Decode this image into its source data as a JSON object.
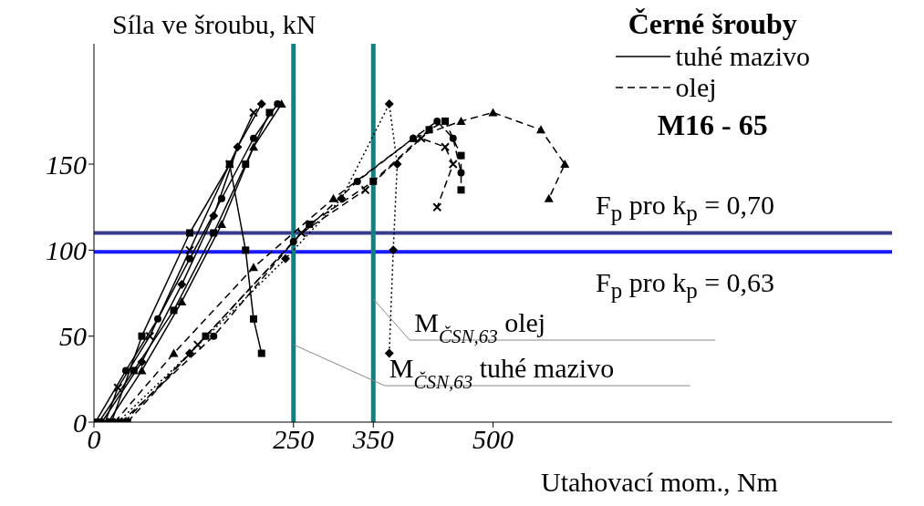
{
  "chart_data": {
    "type": "line",
    "title": "Černé šrouby",
    "subtitle": "M16 - 65",
    "ylabel": "Síla ve šroubu, kN",
    "xlabel": "Utahovací mom., Nm",
    "xlim": [
      0,
      1000
    ],
    "xticks": [
      0,
      250,
      350,
      500
    ],
    "ylim": [
      0,
      220
    ],
    "yticks": [
      0,
      50,
      100,
      150
    ],
    "grid": false,
    "legend": "top right",
    "annotations": [
      "F$_{p}$ pro k$_{p}$ = 0,70",
      "F$_{p}$ pro k$_{p}$ = 0,63"
    ],
    "series": [
      {
        "name": "tuhé mazivo",
        "color": "#000000",
        "line_style": "solid",
        "marker": "circle",
        "x": [
          2,
          40,
          80,
          120,
          160,
          200,
          230
        ],
        "values": [
          0,
          30,
          60,
          95,
          130,
          165,
          185
        ]
      },
      {
        "color": "#000000",
        "line_style": "solid",
        "marker": "square",
        "x": [
          6,
          50,
          100,
          150,
          190,
          220
        ],
        "values": [
          0,
          30,
          65,
          110,
          150,
          180
        ]
      },
      {
        "color": "#000000",
        "line_style": "solid",
        "marker": "diamond",
        "x": [
          10,
          60,
          110,
          150,
          180,
          210
        ],
        "values": [
          0,
          35,
          80,
          120,
          160,
          185
        ]
      },
      {
        "color": "#000000",
        "line_style": "solid",
        "marker": "cross",
        "x": [
          14,
          30,
          70,
          120,
          170,
          200
        ],
        "values": [
          0,
          20,
          50,
          100,
          150,
          180
        ]
      },
      {
        "color": "#000000",
        "line_style": "solid",
        "marker": "triangle",
        "x": [
          18,
          60,
          110,
          160,
          200,
          235
        ],
        "values": [
          0,
          30,
          70,
          115,
          160,
          185
        ]
      },
      {
        "color": "#000000",
        "line_style": "solid",
        "marker": "square",
        "x": [
          22,
          60,
          120,
          170,
          190,
          200,
          210
        ],
        "values": [
          0,
          50,
          110,
          150,
          100,
          60,
          40
        ]
      },
      {
        "name": "olej",
        "color": "#000000",
        "line_style": "dashed",
        "marker": "triangle",
        "x": [
          26,
          100,
          200,
          300,
          400,
          460,
          500,
          560,
          590,
          570
        ],
        "values": [
          0,
          40,
          90,
          130,
          165,
          175,
          180,
          170,
          150,
          130
        ]
      },
      {
        "color": "#000000",
        "line_style": "dotted",
        "marker": "diamond",
        "x": [
          30,
          120,
          240,
          310,
          370,
          380,
          375,
          370
        ],
        "values": [
          0,
          40,
          95,
          130,
          185,
          150,
          100,
          40
        ]
      },
      {
        "color": "#000000",
        "line_style": "dashed",
        "marker": "circle",
        "x": [
          34,
          150,
          250,
          330,
          400,
          430,
          450,
          460
        ],
        "values": [
          0,
          50,
          105,
          140,
          165,
          175,
          165,
          145
        ]
      },
      {
        "color": "#000000",
        "line_style": "dashed",
        "marker": "cross",
        "x": [
          38,
          130,
          260,
          340,
          410,
          440,
          450,
          430
        ],
        "values": [
          0,
          45,
          110,
          135,
          165,
          160,
          150,
          125
        ]
      },
      {
        "color": "#000000",
        "line_style": "dashed",
        "marker": "square",
        "x": [
          42,
          140,
          270,
          350,
          420,
          440,
          460,
          460
        ],
        "values": [
          0,
          50,
          115,
          140,
          170,
          175,
          155,
          135
        ]
      }
    ],
    "ref_lines": [
      {
        "axis": "y",
        "value": 110,
        "color": "#3a3a8c"
      },
      {
        "axis": "y",
        "value": 99,
        "color": "#1a1aff"
      },
      {
        "axis": "x",
        "value": 350,
        "label": "M$_{ČSN,63}$  olej",
        "color": "#138080"
      },
      {
        "axis": "x",
        "value": 250,
        "label": "M$_{ČSN,63}$  tuhé mazivo",
        "color": "#138080"
      }
    ]
  }
}
